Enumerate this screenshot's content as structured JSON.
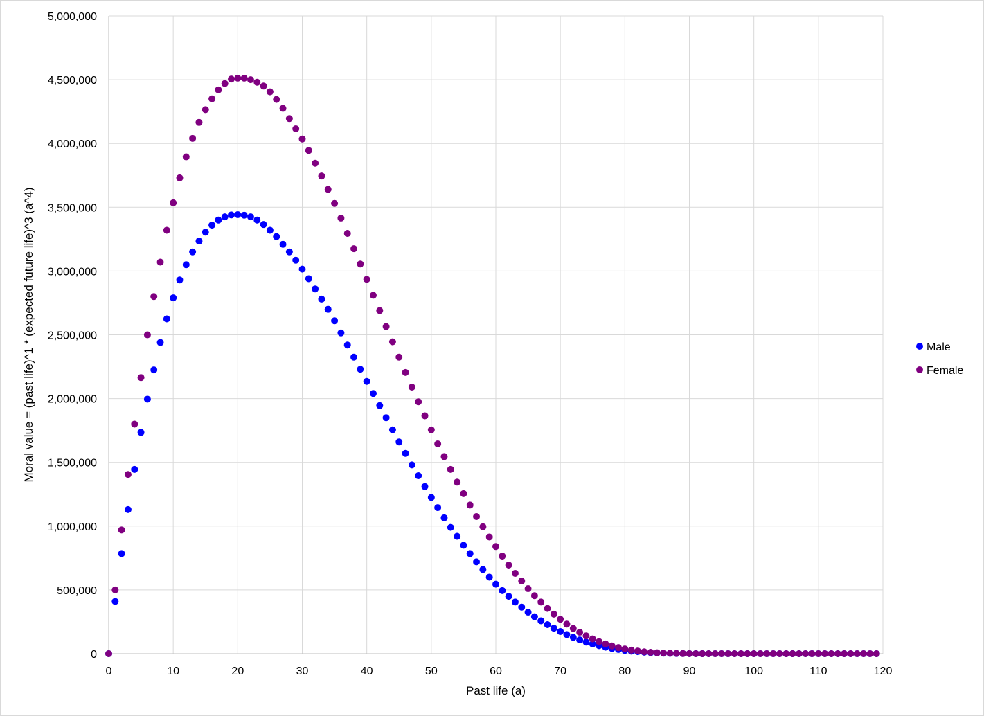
{
  "chart_data": {
    "type": "scatter",
    "title": "",
    "xlabel": "Past life (a)",
    "ylabel": "Moral value = (past life)^1 * (expected future life)^3 (a^4)",
    "xlim": [
      0,
      120
    ],
    "ylim": [
      0,
      5000000
    ],
    "x_ticks": [
      "0",
      "10",
      "20",
      "30",
      "40",
      "50",
      "60",
      "70",
      "80",
      "90",
      "100",
      "110",
      "120"
    ],
    "y_ticks": [
      "0",
      "500,000",
      "1,000,000",
      "1,500,000",
      "2,000,000",
      "2,500,000",
      "3,000,000",
      "3,500,000",
      "4,000,000",
      "4,500,000",
      "5,000,000"
    ],
    "grid": true,
    "legend_position": "right",
    "x": [
      0,
      1,
      2,
      3,
      4,
      5,
      6,
      7,
      8,
      9,
      10,
      11,
      12,
      13,
      14,
      15,
      16,
      17,
      18,
      19,
      20,
      21,
      22,
      23,
      24,
      25,
      26,
      27,
      28,
      29,
      30,
      31,
      32,
      33,
      34,
      35,
      36,
      37,
      38,
      39,
      40,
      41,
      42,
      43,
      44,
      45,
      46,
      47,
      48,
      49,
      50,
      51,
      52,
      53,
      54,
      55,
      56,
      57,
      58,
      59,
      60,
      61,
      62,
      63,
      64,
      65,
      66,
      67,
      68,
      69,
      70,
      71,
      72,
      73,
      74,
      75,
      76,
      77,
      78,
      79,
      80,
      81,
      82,
      83,
      84,
      85,
      86,
      87,
      88,
      89,
      90,
      91,
      92,
      93,
      94,
      95,
      96,
      97,
      98,
      99,
      100,
      101,
      102,
      103,
      104,
      105,
      106,
      107,
      108,
      109,
      110,
      111,
      112,
      113,
      114,
      115,
      116,
      117,
      118,
      119
    ],
    "series": [
      {
        "name": "Male",
        "color": "#0000ff",
        "values": [
          0,
          410000,
          785000,
          1130000,
          1445000,
          1735000,
          1995000,
          2225000,
          2440000,
          2625000,
          2790000,
          2930000,
          3050000,
          3150000,
          3235000,
          3305000,
          3360000,
          3400000,
          3425000,
          3440000,
          3442000,
          3438000,
          3425000,
          3400000,
          3365000,
          3320000,
          3270000,
          3210000,
          3150000,
          3085000,
          3015000,
          2940000,
          2860000,
          2780000,
          2700000,
          2610000,
          2515000,
          2420000,
          2325000,
          2230000,
          2135000,
          2040000,
          1945000,
          1850000,
          1755000,
          1660000,
          1570000,
          1480000,
          1395000,
          1310000,
          1225000,
          1145000,
          1065000,
          990000,
          920000,
          850000,
          785000,
          720000,
          660000,
          600000,
          545000,
          495000,
          450000,
          405000,
          365000,
          325000,
          290000,
          258000,
          228000,
          200000,
          174000,
          150000,
          128000,
          108000,
          91000,
          76000,
          63000,
          51000,
          41000,
          33000,
          26000,
          20000,
          15500,
          11500,
          8500,
          6000,
          4200,
          2800,
          1800,
          1100,
          650,
          350,
          180,
          80,
          30,
          10,
          3,
          1,
          0,
          0,
          0,
          0,
          0,
          0,
          0,
          0,
          0,
          0,
          0,
          0,
          0,
          0,
          0,
          0,
          0,
          0,
          0,
          0,
          0,
          0
        ]
      },
      {
        "name": "Female",
        "color": "#800080",
        "values": [
          0,
          500000,
          970000,
          1405000,
          1800000,
          2165000,
          2500000,
          2800000,
          3070000,
          3320000,
          3535000,
          3730000,
          3895000,
          4040000,
          4165000,
          4265000,
          4350000,
          4420000,
          4470000,
          4505000,
          4512000,
          4512000,
          4500000,
          4480000,
          4450000,
          4405000,
          4345000,
          4275000,
          4195000,
          4115000,
          4035000,
          3945000,
          3845000,
          3745000,
          3640000,
          3530000,
          3415000,
          3295000,
          3175000,
          3055000,
          2935000,
          2810000,
          2690000,
          2565000,
          2445000,
          2325000,
          2205000,
          2090000,
          1975000,
          1865000,
          1755000,
          1645000,
          1545000,
          1445000,
          1345000,
          1255000,
          1165000,
          1075000,
          995000,
          915000,
          840000,
          765000,
          695000,
          630000,
          570000,
          510000,
          455000,
          405000,
          355000,
          310000,
          270000,
          232000,
          198000,
          168000,
          140000,
          116000,
          95000,
          77000,
          61000,
          48000,
          37000,
          28000,
          21000,
          15000,
          11000,
          7600,
          5100,
          3300,
          2000,
          1200,
          650,
          330,
          150,
          60,
          20,
          5,
          1,
          0,
          0,
          0,
          0,
          0,
          0,
          0,
          0,
          0,
          0,
          0,
          0,
          0,
          0,
          0,
          0,
          0,
          0,
          0,
          0,
          0,
          0,
          0
        ]
      }
    ]
  }
}
